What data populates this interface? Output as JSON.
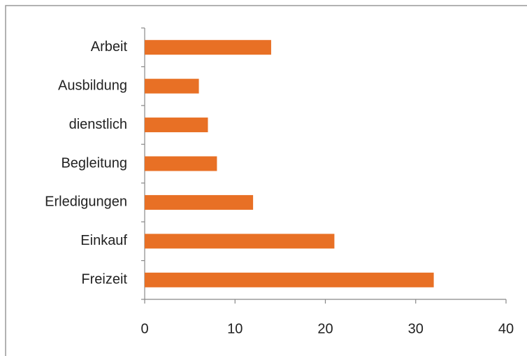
{
  "chart_data": {
    "type": "bar",
    "orientation": "horizontal",
    "categories": [
      "Arbeit",
      "Ausbildung",
      "dienstlich",
      "Begleitung",
      "Erledigungen",
      "Einkauf",
      "Freizeit"
    ],
    "values": [
      14,
      6,
      7,
      8,
      12,
      21,
      32
    ],
    "color": "#e87025",
    "xlim": [
      0,
      40
    ],
    "xticks": [
      0,
      10,
      20,
      30,
      40
    ],
    "grid": false
  }
}
